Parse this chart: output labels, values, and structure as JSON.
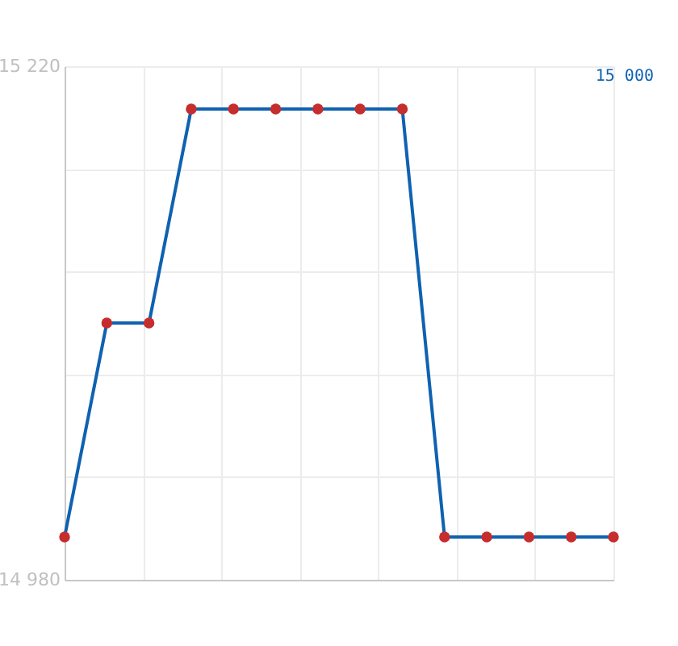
{
  "chart_data": {
    "type": "line",
    "categories": [
      null,
      null,
      null,
      null,
      null,
      null,
      null,
      null,
      null,
      null,
      null,
      null,
      null,
      null
    ],
    "series": [
      {
        "color": "#0f62b0",
        "values": [
          15000,
          15100,
          15100,
          15200,
          15200,
          15200,
          15200,
          15200,
          15200,
          15000,
          15000,
          15000,
          15000,
          15000
        ]
      },
      {
        "type": "scatter",
        "marker": "circle",
        "color": "#c62d2d",
        "values": [
          15000,
          15100,
          15100,
          15200,
          15200,
          15200,
          15200,
          15200,
          15200,
          15000,
          15000,
          15000,
          15000,
          15000
        ]
      }
    ],
    "ylim": [
      14980,
      15220
    ],
    "yticks": [
      {
        "value": 14980,
        "label": "14 980"
      },
      {
        "value": 15028,
        "label": null
      },
      {
        "value": 15076,
        "label": null
      },
      {
        "value": 15124,
        "label": null
      },
      {
        "value": 15172,
        "label": null
      },
      {
        "value": 15220,
        "label": "15 220"
      }
    ],
    "grid": true,
    "line_style": "solid",
    "annotations": [
      "15 000"
    ]
  }
}
